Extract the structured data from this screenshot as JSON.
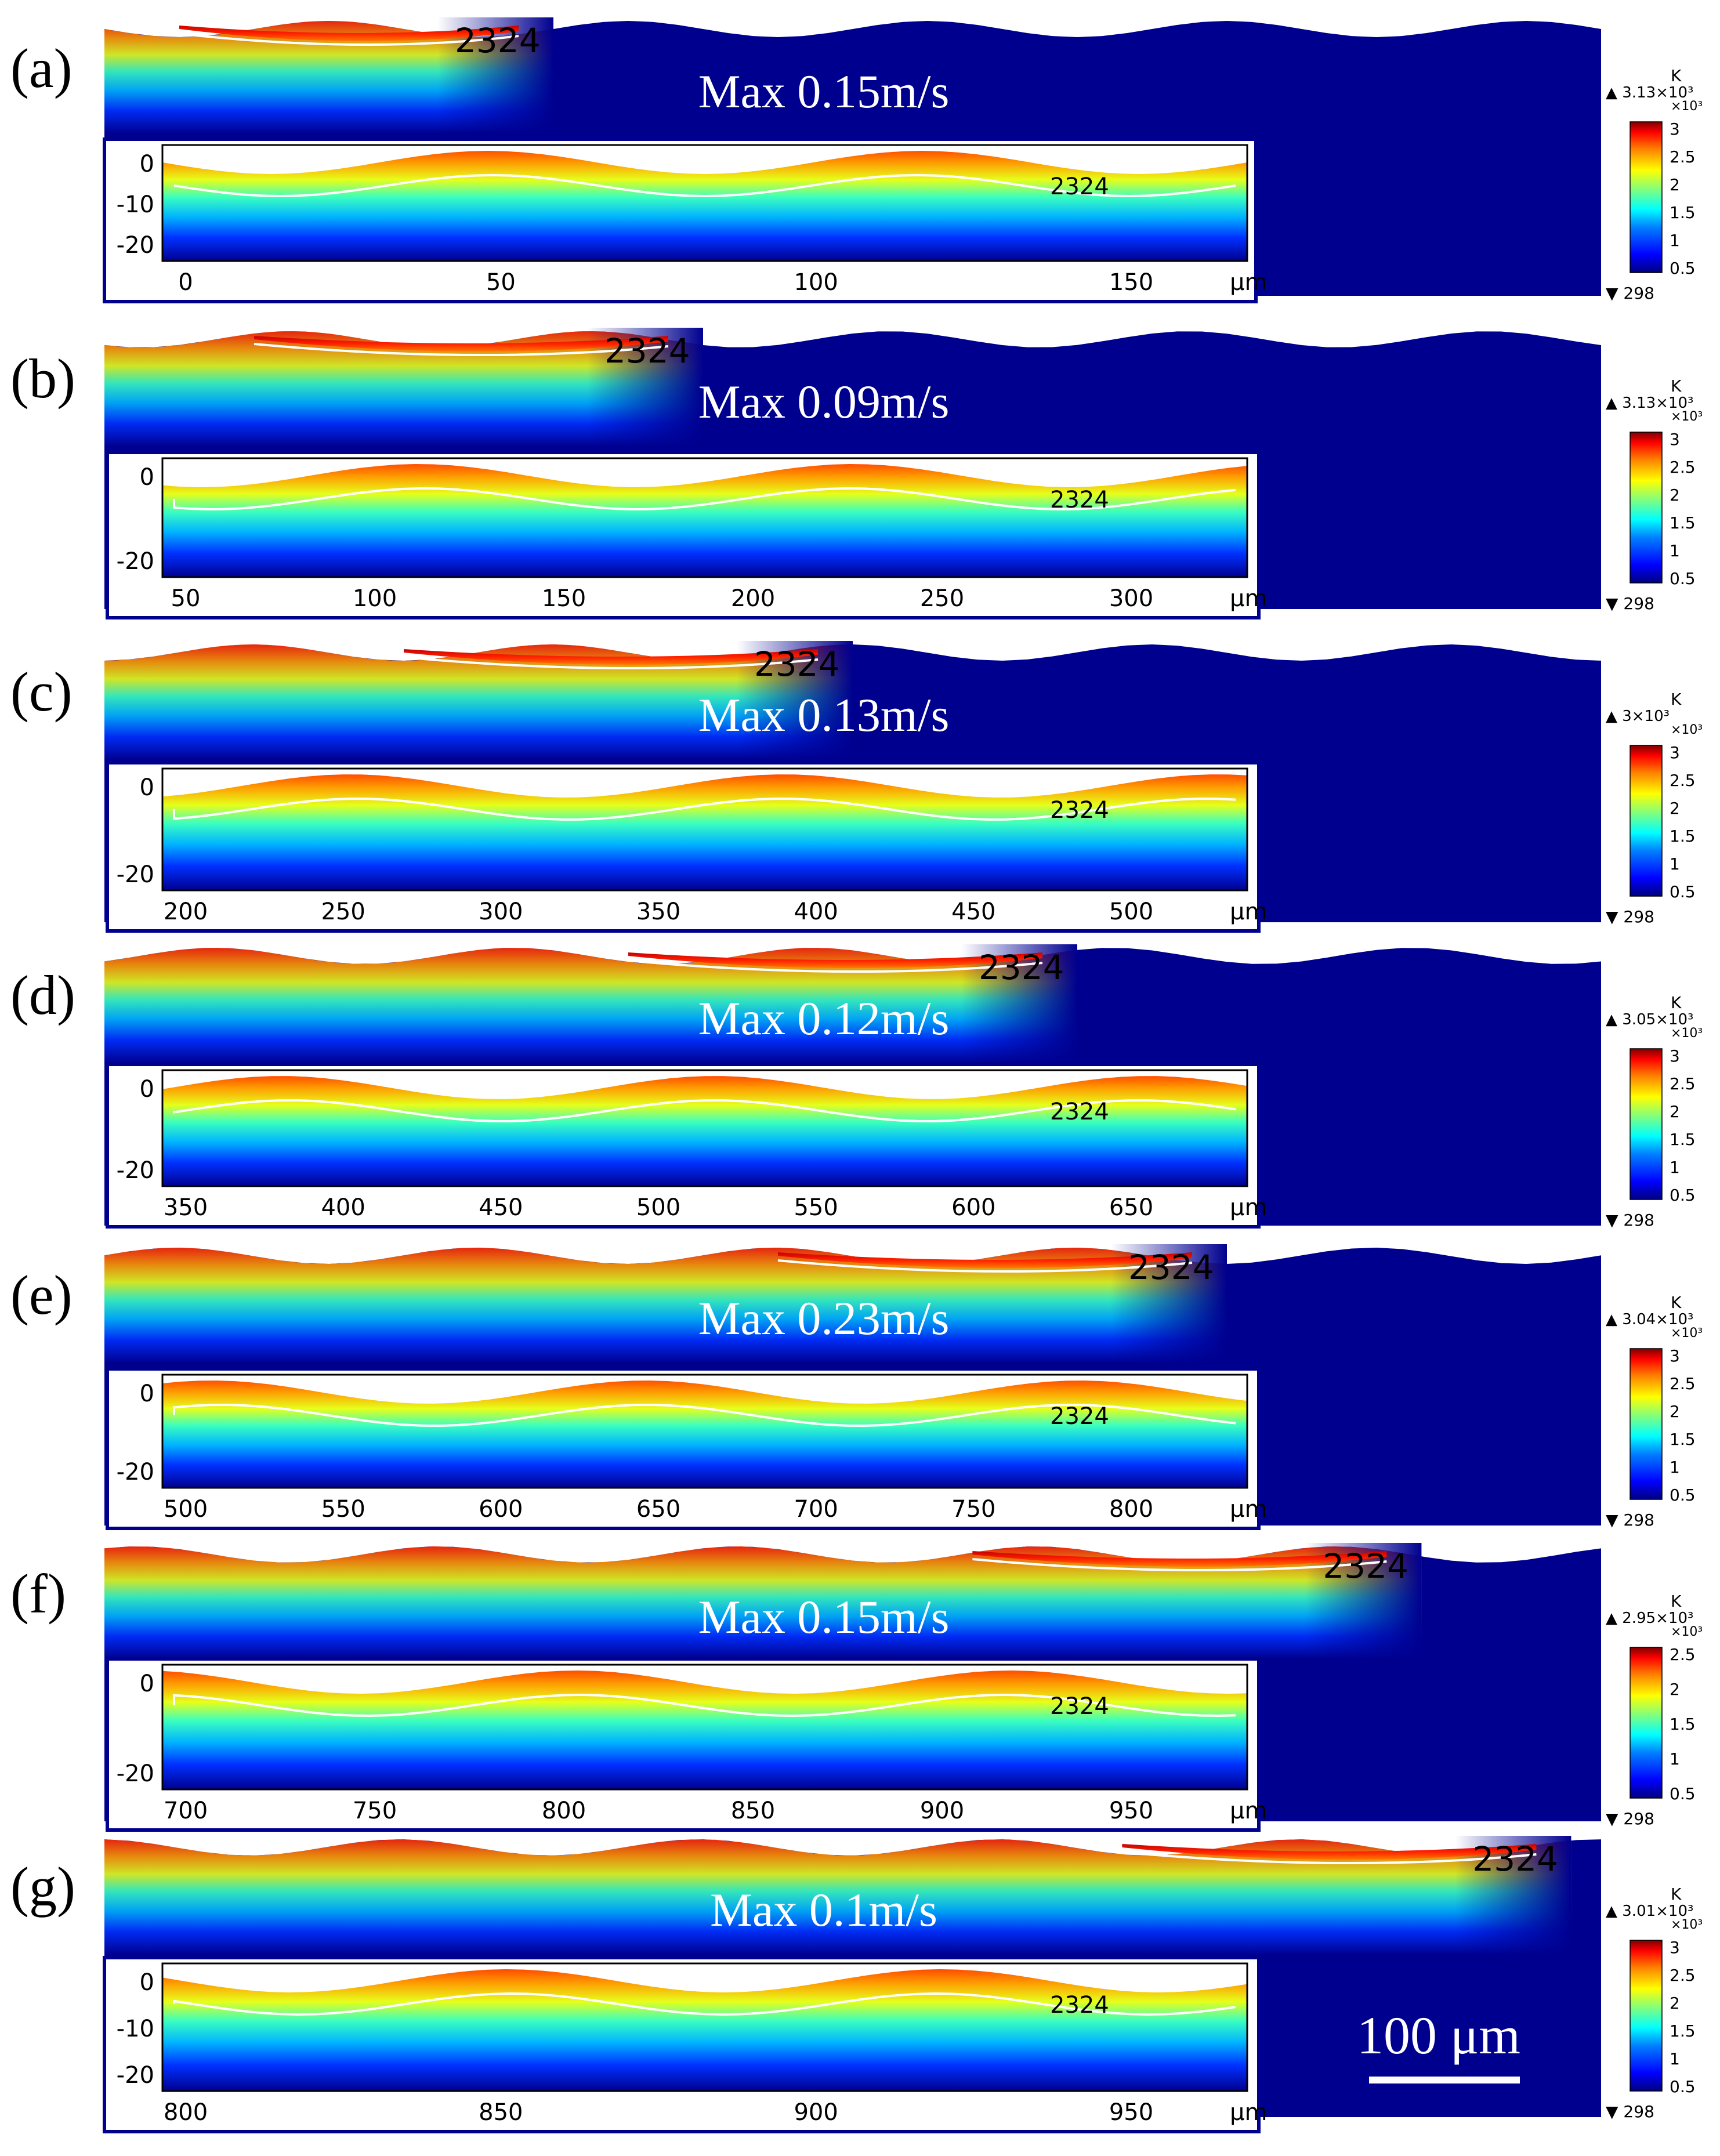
{
  "figure": {
    "colors": {
      "background": "#ffffff",
      "cold_field": "#00008f",
      "melt_pool": "#d9200f",
      "isotherm": "#ffffff"
    },
    "colormap": [
      "#00007f",
      "#0000ff",
      "#007fff",
      "#00ffff",
      "#7fff7f",
      "#ffff00",
      "#ff7f00",
      "#ff0000",
      "#7f0000"
    ],
    "scale_bar_label": "100 μm",
    "panels": [
      {
        "id": "a",
        "label": "(a)",
        "max_velocity": "Max 0.15m/s",
        "isotherm_label": "2324",
        "colorbar": {
          "unit": "K",
          "top": "▲ 3.13×10³",
          "multiplier": "×10³",
          "ticks": [
            "3",
            "2.5",
            "2",
            "1.5",
            "1",
            "0.5"
          ],
          "bottom": "▼ 298"
        },
        "inset": {
          "x_ticks": [
            "0",
            "50",
            "100",
            "150"
          ],
          "y_ticks": [
            "0",
            "-10",
            "-20"
          ],
          "unit": "μm",
          "isotherm_label": "2324"
        }
      },
      {
        "id": "b",
        "label": "(b)",
        "max_velocity": "Max 0.09m/s",
        "isotherm_label": "2324",
        "colorbar": {
          "unit": "K",
          "top": "▲ 3.13×10³",
          "multiplier": "×10³",
          "ticks": [
            "3",
            "2.5",
            "2",
            "1.5",
            "1",
            "0.5"
          ],
          "bottom": "▼ 298"
        },
        "inset": {
          "x_ticks": [
            "50",
            "100",
            "150",
            "200",
            "250",
            "300"
          ],
          "y_ticks": [
            "0",
            "-20"
          ],
          "unit": "μm",
          "isotherm_label": "2324"
        }
      },
      {
        "id": "c",
        "label": "(c)",
        "max_velocity": "Max  0.13m/s",
        "isotherm_label": "2324",
        "colorbar": {
          "unit": "K",
          "top": "▲ 3×10³",
          "multiplier": "×10³",
          "ticks": [
            "3",
            "2.5",
            "2",
            "1.5",
            "1",
            "0.5"
          ],
          "bottom": "▼ 298"
        },
        "inset": {
          "x_ticks": [
            "200",
            "250",
            "300",
            "350",
            "400",
            "450",
            "500"
          ],
          "y_ticks": [
            "0",
            "-20"
          ],
          "unit": "μm",
          "isotherm_label": "2324"
        }
      },
      {
        "id": "d",
        "label": "(d)",
        "max_velocity": "Max  0.12m/s",
        "isotherm_label": "2324",
        "colorbar": {
          "unit": "K",
          "top": "▲ 3.05×10³",
          "multiplier": "×10³",
          "ticks": [
            "3",
            "2.5",
            "2",
            "1.5",
            "1",
            "0.5"
          ],
          "bottom": "▼ 298"
        },
        "inset": {
          "x_ticks": [
            "350",
            "400",
            "450",
            "500",
            "550",
            "600",
            "650"
          ],
          "y_ticks": [
            "0",
            "-20"
          ],
          "unit": "μm",
          "isotherm_label": "2324"
        }
      },
      {
        "id": "e",
        "label": "(e)",
        "max_velocity": "Max 0.23m/s",
        "isotherm_label": "2324",
        "colorbar": {
          "unit": "K",
          "top": "▲ 3.04×10³",
          "multiplier": "×10³",
          "ticks": [
            "3",
            "2.5",
            "2",
            "1.5",
            "1",
            "0.5"
          ],
          "bottom": "▼ 298"
        },
        "inset": {
          "x_ticks": [
            "500",
            "550",
            "600",
            "650",
            "700",
            "750",
            "800"
          ],
          "y_ticks": [
            "0",
            "-20"
          ],
          "unit": "μm",
          "isotherm_label": "2324"
        }
      },
      {
        "id": "f",
        "label": "(f)",
        "max_velocity": "Max 0.15m/s",
        "isotherm_label": "2324",
        "colorbar": {
          "unit": "K",
          "top": "▲ 2.95×10³",
          "multiplier": "×10³",
          "ticks": [
            "2.5",
            "2",
            "1.5",
            "1",
            "0.5"
          ],
          "bottom": "▼ 298"
        },
        "inset": {
          "x_ticks": [
            "700",
            "750",
            "800",
            "850",
            "900",
            "950"
          ],
          "y_ticks": [
            "0",
            "-20"
          ],
          "unit": "μm",
          "isotherm_label": "2324"
        }
      },
      {
        "id": "g",
        "label": "(g)",
        "max_velocity": "Max 0.1m/s",
        "isotherm_label": "2324",
        "colorbar": {
          "unit": "K",
          "top": "▲ 3.01×10³",
          "multiplier": "×10³",
          "ticks": [
            "3",
            "2.5",
            "2",
            "1.5",
            "1",
            "0.5"
          ],
          "bottom": "▼ 298"
        },
        "inset": {
          "x_ticks": [
            "800",
            "850",
            "900",
            "950"
          ],
          "y_ticks": [
            "0",
            "-10",
            "-20"
          ],
          "unit": "μm",
          "isotherm_label": "2324"
        }
      }
    ]
  }
}
